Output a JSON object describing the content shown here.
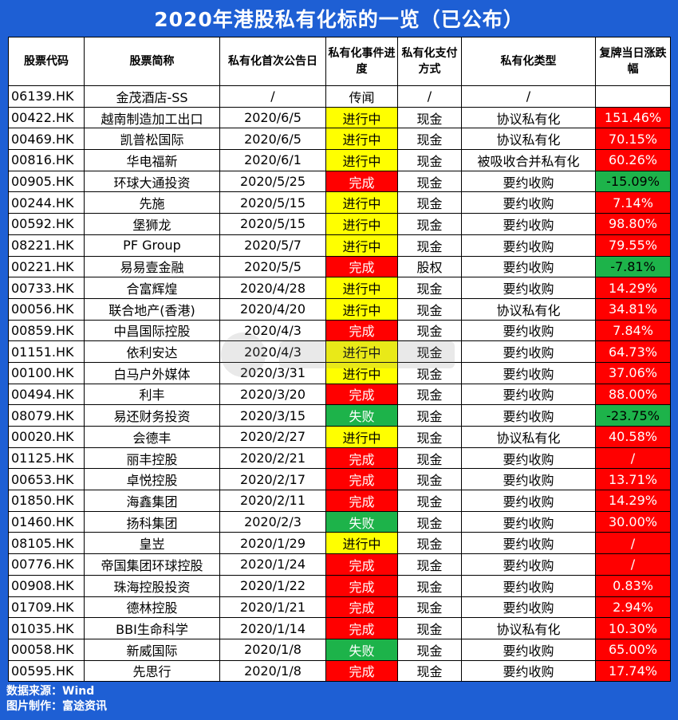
{
  "title": "2020年港股私有化标的一览（已公布）",
  "headers": [
    "股票代码",
    "股票简称",
    "私有化首次公告日",
    "私有化事件进度",
    "私有化支付方式",
    "私有化类型",
    "复牌当日涨跌幅"
  ],
  "rows": [
    {
      "code": "06139.HK",
      "name": "金茂酒店-SS",
      "date": "/",
      "status": "传闻",
      "pay": "/",
      "type": "/",
      "change": ""
    },
    {
      "code": "00422.HK",
      "name": "越南制造加工出口",
      "date": "2020/6/5",
      "status": "进行中",
      "pay": "现金",
      "type": "协议私有化",
      "change": "151.46%"
    },
    {
      "code": "00469.HK",
      "name": "凯普松国际",
      "date": "2020/6/5",
      "status": "进行中",
      "pay": "现金",
      "type": "协议私有化",
      "change": "70.15%"
    },
    {
      "code": "00816.HK",
      "name": "华电福新",
      "date": "2020/6/1",
      "status": "进行中",
      "pay": "现金",
      "type": "被吸收合并私有化",
      "change": "60.26%"
    },
    {
      "code": "00905.HK",
      "name": "环球大通投资",
      "date": "2020/5/25",
      "status": "完成",
      "pay": "现金",
      "type": "要约收购",
      "change": "-15.09%"
    },
    {
      "code": "00244.HK",
      "name": "先施",
      "date": "2020/5/15",
      "status": "进行中",
      "pay": "现金",
      "type": "要约收购",
      "change": "7.14%"
    },
    {
      "code": "00592.HK",
      "name": "堡狮龙",
      "date": "2020/5/15",
      "status": "进行中",
      "pay": "现金",
      "type": "要约收购",
      "change": "98.80%"
    },
    {
      "code": "08221.HK",
      "name": "PF Group",
      "date": "2020/5/7",
      "status": "进行中",
      "pay": "现金",
      "type": "要约收购",
      "change": "79.55%"
    },
    {
      "code": "00221.HK",
      "name": "易易壹金融",
      "date": "2020/5/5",
      "status": "完成",
      "pay": "股权",
      "type": "要约收购",
      "change": "-7.81%"
    },
    {
      "code": "00733.HK",
      "name": "合富辉煌",
      "date": "2020/4/28",
      "status": "进行中",
      "pay": "现金",
      "type": "要约收购",
      "change": "14.29%"
    },
    {
      "code": "00056.HK",
      "name": "联合地产(香港)",
      "date": "2020/4/20",
      "status": "进行中",
      "pay": "现金",
      "type": "协议私有化",
      "change": "34.81%"
    },
    {
      "code": "00859.HK",
      "name": "中昌国际控股",
      "date": "2020/4/3",
      "status": "完成",
      "pay": "现金",
      "type": "要约收购",
      "change": "7.84%"
    },
    {
      "code": "01151.HK",
      "name": "依利安达",
      "date": "2020/4/3",
      "status": "进行中",
      "pay": "现金",
      "type": "要约收购",
      "change": "64.73%"
    },
    {
      "code": "00100.HK",
      "name": "白马户外媒体",
      "date": "2020/3/31",
      "status": "进行中",
      "pay": "现金",
      "type": "要约收购",
      "change": "37.06%"
    },
    {
      "code": "00494.HK",
      "name": "利丰",
      "date": "2020/3/20",
      "status": "完成",
      "pay": "现金",
      "type": "要约收购",
      "change": "88.00%"
    },
    {
      "code": "08079.HK",
      "name": "易还财务投资",
      "date": "2020/3/15",
      "status": "失败",
      "pay": "现金",
      "type": "要约收购",
      "change": "-23.75%"
    },
    {
      "code": "00020.HK",
      "name": "会德丰",
      "date": "2020/2/27",
      "status": "进行中",
      "pay": "现金",
      "type": "协议私有化",
      "change": "40.58%"
    },
    {
      "code": "01125.HK",
      "name": "丽丰控股",
      "date": "2020/2/21",
      "status": "完成",
      "pay": "现金",
      "type": "要约收购",
      "change": "/"
    },
    {
      "code": "00653.HK",
      "name": "卓悦控股",
      "date": "2020/2/17",
      "status": "完成",
      "pay": "现金",
      "type": "要约收购",
      "change": "13.71%"
    },
    {
      "code": "01850.HK",
      "name": "海鑫集团",
      "date": "2020/2/11",
      "status": "完成",
      "pay": "现金",
      "type": "要约收购",
      "change": "14.29%"
    },
    {
      "code": "01460.HK",
      "name": "扬科集团",
      "date": "2020/2/3",
      "status": "失败",
      "pay": "现金",
      "type": "要约收购",
      "change": "30.00%"
    },
    {
      "code": "08105.HK",
      "name": "皇岦",
      "date": "2020/1/29",
      "status": "进行中",
      "pay": "现金",
      "type": "要约收购",
      "change": "/"
    },
    {
      "code": "00776.HK",
      "name": "帝国集团环球控股",
      "date": "2020/1/24",
      "status": "完成",
      "pay": "现金",
      "type": "要约收购",
      "change": "/"
    },
    {
      "code": "00908.HK",
      "name": "珠海控股投资",
      "date": "2020/1/22",
      "status": "完成",
      "pay": "现金",
      "type": "要约收购",
      "change": "0.83%"
    },
    {
      "code": "01709.HK",
      "name": "德林控股",
      "date": "2020/1/21",
      "status": "完成",
      "pay": "现金",
      "type": "要约收购",
      "change": "2.94%"
    },
    {
      "code": "01035.HK",
      "name": "BBI生命科学",
      "date": "2020/1/14",
      "status": "完成",
      "pay": "现金",
      "type": "协议私有化",
      "change": "10.30%"
    },
    {
      "code": "00058.HK",
      "name": "新威国际",
      "date": "2020/1/8",
      "status": "失败",
      "pay": "现金",
      "type": "要约收购",
      "change": "65.00%"
    },
    {
      "code": "00595.HK",
      "name": "先思行",
      "date": "2020/1/8",
      "status": "完成",
      "pay": "现金",
      "type": "要约收购",
      "change": "17.74%"
    }
  ],
  "footer": {
    "source": "数据来源：Wind",
    "credit": "图片制作：富途资讯"
  },
  "colors": {
    "background": "#1e5fd4",
    "in_progress": "#ffff00",
    "done": "#ff0000",
    "failed": "#1db34a",
    "positive_change": "#ff0000",
    "negative_change": "#1db34a"
  },
  "watermark_icon": "futu-logo-icon"
}
